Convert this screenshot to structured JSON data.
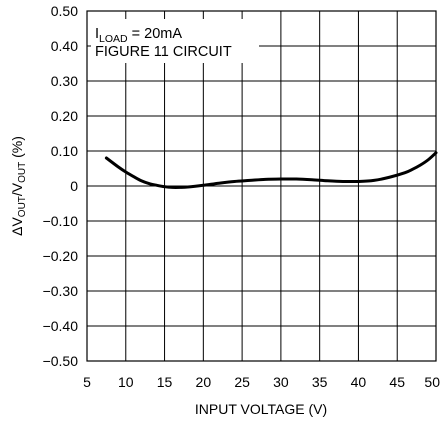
{
  "chart_data": {
    "type": "line",
    "title": "",
    "xlabel": "INPUT VOLTAGE (V)",
    "ylabel": {
      "prefix": "ΔV",
      "sub1": "OUT",
      "mid": "/V",
      "sub2": "OUT",
      "suffix": " (%)"
    },
    "xlim": [
      5,
      50
    ],
    "ylim": [
      -0.5,
      0.5
    ],
    "x_ticks": [
      5,
      10,
      15,
      20,
      25,
      30,
      35,
      40,
      45,
      50
    ],
    "x_tick_labels": [
      "5",
      "10",
      "15",
      "20",
      "25",
      "30",
      "35",
      "40",
      "45",
      "50"
    ],
    "y_ticks": [
      0.5,
      0.4,
      0.3,
      0.2,
      0.1,
      0,
      -0.1,
      -0.2,
      -0.3,
      -0.4,
      -0.5
    ],
    "y_tick_labels": [
      "0.50",
      "0.40",
      "0.30",
      "0.20",
      "0.10",
      "0",
      "−0.10",
      "−0.20",
      "−0.30",
      "−0.40",
      "−0.50"
    ],
    "grid": true,
    "annotations": {
      "load_prefix": "I",
      "load_sub": "LOAD",
      "load_suffix": " = 20mA",
      "circuit": "FIGURE 11 CIRCUIT"
    },
    "series": [
      {
        "x": [
          7.5,
          9,
          10,
          11,
          12,
          13,
          14,
          15,
          16,
          17,
          18,
          20,
          22,
          24,
          26,
          28,
          30,
          32,
          34,
          36,
          38,
          40,
          42,
          44,
          46,
          47,
          48,
          49,
          50
        ],
        "y": [
          0.08,
          0.055,
          0.04,
          0.027,
          0.015,
          0.007,
          0.002,
          -0.002,
          -0.004,
          -0.004,
          -0.003,
          0.002,
          0.008,
          0.013,
          0.016,
          0.019,
          0.02,
          0.02,
          0.018,
          0.015,
          0.013,
          0.013,
          0.016,
          0.025,
          0.038,
          0.048,
          0.06,
          0.075,
          0.095
        ]
      }
    ]
  }
}
